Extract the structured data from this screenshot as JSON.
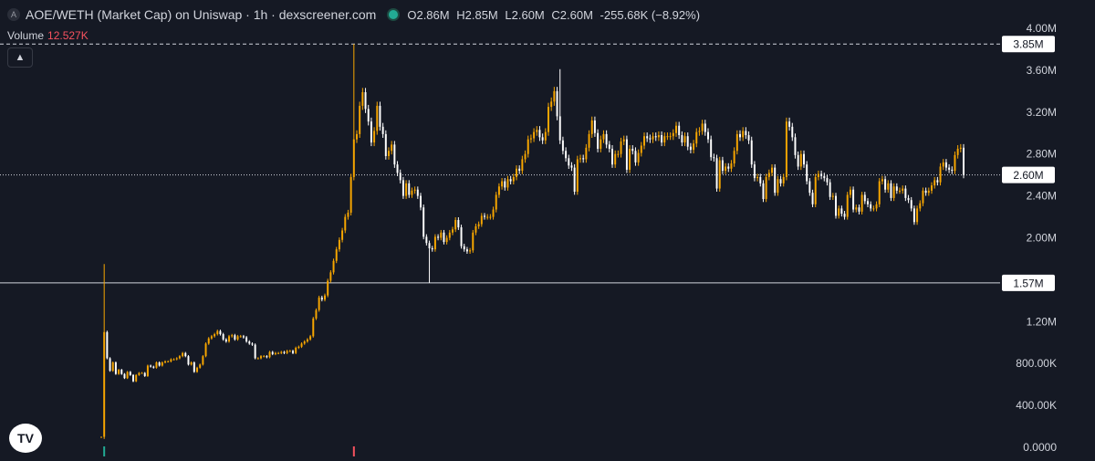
{
  "header": {
    "symbol_icon": "A",
    "title": "AOE/WETH (Market Cap) on Uniswap · 1h · dexscreener.com",
    "status_color": "#22ab94",
    "ohlc": {
      "o_label": "O",
      "o": "2.86M",
      "h_label": "H",
      "h": "2.85M",
      "l_label": "L",
      "l": "2.60M",
      "c_label": "C",
      "c": "2.60M",
      "change": "-255.68K (−8.92%)"
    }
  },
  "volume": {
    "label": "Volume",
    "value": "12.527K",
    "value_color": "#f7525f"
  },
  "collapse_icon": "chevron-up-icon",
  "logo_text": "TV",
  "colors": {
    "background": "#151924",
    "up": "#f7a600",
    "down": "#ffffff",
    "text": "#d1d4dc"
  },
  "chart_data": {
    "type": "candlestick",
    "ylim": [
      0,
      4000000
    ],
    "y_tick_labels": [
      "4.00M",
      "3.60M",
      "3.20M",
      "2.80M",
      "2.40M",
      "2.00M",
      "1.20M",
      "800.00K",
      "400.00K",
      "0.0000"
    ],
    "y_ticks": [
      4000000,
      3600000,
      3200000,
      2800000,
      2400000,
      2000000,
      1200000,
      800000,
      400000,
      0
    ],
    "price_labels": [
      {
        "value": 3850000,
        "label": "3.85M",
        "style": "dashed"
      },
      {
        "value": 2600000,
        "label": "2.60M",
        "style": "dotted"
      },
      {
        "value": 1570000,
        "label": "1.57M",
        "style": "solid"
      }
    ],
    "closes": [
      0.1,
      1.1,
      0.85,
      0.73,
      0.81,
      0.7,
      0.74,
      0.7,
      0.66,
      0.72,
      0.69,
      0.63,
      0.69,
      0.71,
      0.71,
      0.68,
      0.78,
      0.77,
      0.76,
      0.81,
      0.78,
      0.81,
      0.82,
      0.82,
      0.84,
      0.84,
      0.85,
      0.87,
      0.9,
      0.87,
      0.79,
      0.81,
      0.72,
      0.76,
      0.79,
      0.87,
      0.99,
      1.04,
      1.06,
      1.08,
      1.11,
      1.08,
      1.03,
      1.01,
      1.06,
      1.07,
      1.03,
      1.06,
      1.06,
      1.05,
      1.01,
      0.99,
      0.98,
      0.85,
      0.85,
      0.87,
      0.87,
      0.86,
      0.91,
      0.89,
      0.9,
      0.9,
      0.91,
      0.9,
      0.92,
      0.92,
      0.9,
      0.95,
      0.96,
      0.99,
      1.01,
      1.03,
      1.06,
      1.23,
      1.31,
      1.43,
      1.41,
      1.45,
      1.59,
      1.67,
      1.78,
      1.89,
      1.98,
      2.07,
      2.2,
      2.24,
      2.58,
      2.94,
      2.99,
      3.26,
      3.39,
      3.23,
      3.11,
      2.91,
      3.02,
      3.26,
      3.06,
      2.99,
      2.78,
      2.83,
      2.89,
      2.7,
      2.62,
      2.55,
      2.4,
      2.52,
      2.41,
      2.45,
      2.46,
      2.4,
      2.29,
      2.01,
      1.95,
      1.9,
      1.89,
      2.01,
      2.0,
      2.05,
      1.96,
      2.0,
      2.05,
      2.08,
      2.17,
      2.1,
      1.92,
      1.89,
      1.87,
      1.88,
      2.05,
      2.11,
      2.13,
      2.21,
      2.2,
      2.2,
      2.2,
      2.27,
      2.41,
      2.49,
      2.54,
      2.48,
      2.56,
      2.54,
      2.58,
      2.66,
      2.64,
      2.75,
      2.8,
      2.94,
      2.95,
      3.01,
      3.03,
      2.96,
      2.93,
      3.01,
      3.25,
      3.3,
      3.4,
      3.16,
      2.93,
      2.83,
      2.76,
      2.69,
      2.67,
      2.44,
      2.75,
      2.76,
      2.75,
      2.86,
      2.99,
      3.12,
      3.0,
      2.85,
      2.94,
      2.99,
      2.89,
      2.85,
      2.7,
      2.8,
      2.8,
      2.92,
      2.94,
      2.65,
      2.85,
      2.83,
      2.72,
      2.81,
      2.88,
      2.97,
      2.95,
      2.94,
      2.97,
      2.96,
      2.98,
      2.91,
      2.97,
      2.97,
      2.97,
      3.0,
      3.07,
      2.98,
      2.91,
      2.97,
      2.87,
      2.84,
      2.9,
      3.01,
      3.02,
      3.09,
      3.01,
      2.94,
      2.77,
      2.76,
      2.47,
      2.74,
      2.64,
      2.68,
      2.66,
      2.71,
      2.83,
      2.99,
      2.96,
      3.02,
      2.98,
      2.93,
      2.7,
      2.57,
      2.58,
      2.52,
      2.37,
      2.58,
      2.62,
      2.67,
      2.43,
      2.56,
      2.52,
      2.58,
      3.11,
      3.06,
      2.96,
      2.79,
      2.68,
      2.8,
      2.7,
      2.54,
      2.43,
      2.32,
      2.58,
      2.61,
      2.59,
      2.57,
      2.53,
      2.39,
      2.4,
      2.21,
      2.28,
      2.23,
      2.2,
      2.41,
      2.46,
      2.27,
      2.29,
      2.25,
      2.41,
      2.35,
      2.32,
      2.28,
      2.28,
      2.32,
      2.54,
      2.56,
      2.46,
      2.52,
      2.38,
      2.49,
      2.45,
      2.45,
      2.47,
      2.38,
      2.36,
      2.28,
      2.15,
      2.28,
      2.33,
      2.45,
      2.43,
      2.45,
      2.5,
      2.55,
      2.53,
      2.68,
      2.72,
      2.67,
      2.65,
      2.64,
      2.79,
      2.85,
      2.86,
      2.6
    ],
    "spikes": [
      {
        "index": 1,
        "high": 1.75,
        "low": 0.08
      },
      {
        "index": 87,
        "high": 3.85
      },
      {
        "index": 113,
        "low": 1.57
      },
      {
        "index": 158,
        "high": 3.61
      }
    ],
    "volume_marks": [
      {
        "index": 1,
        "color": "#22ab94"
      },
      {
        "index": 87,
        "color": "#f7525f"
      }
    ]
  }
}
